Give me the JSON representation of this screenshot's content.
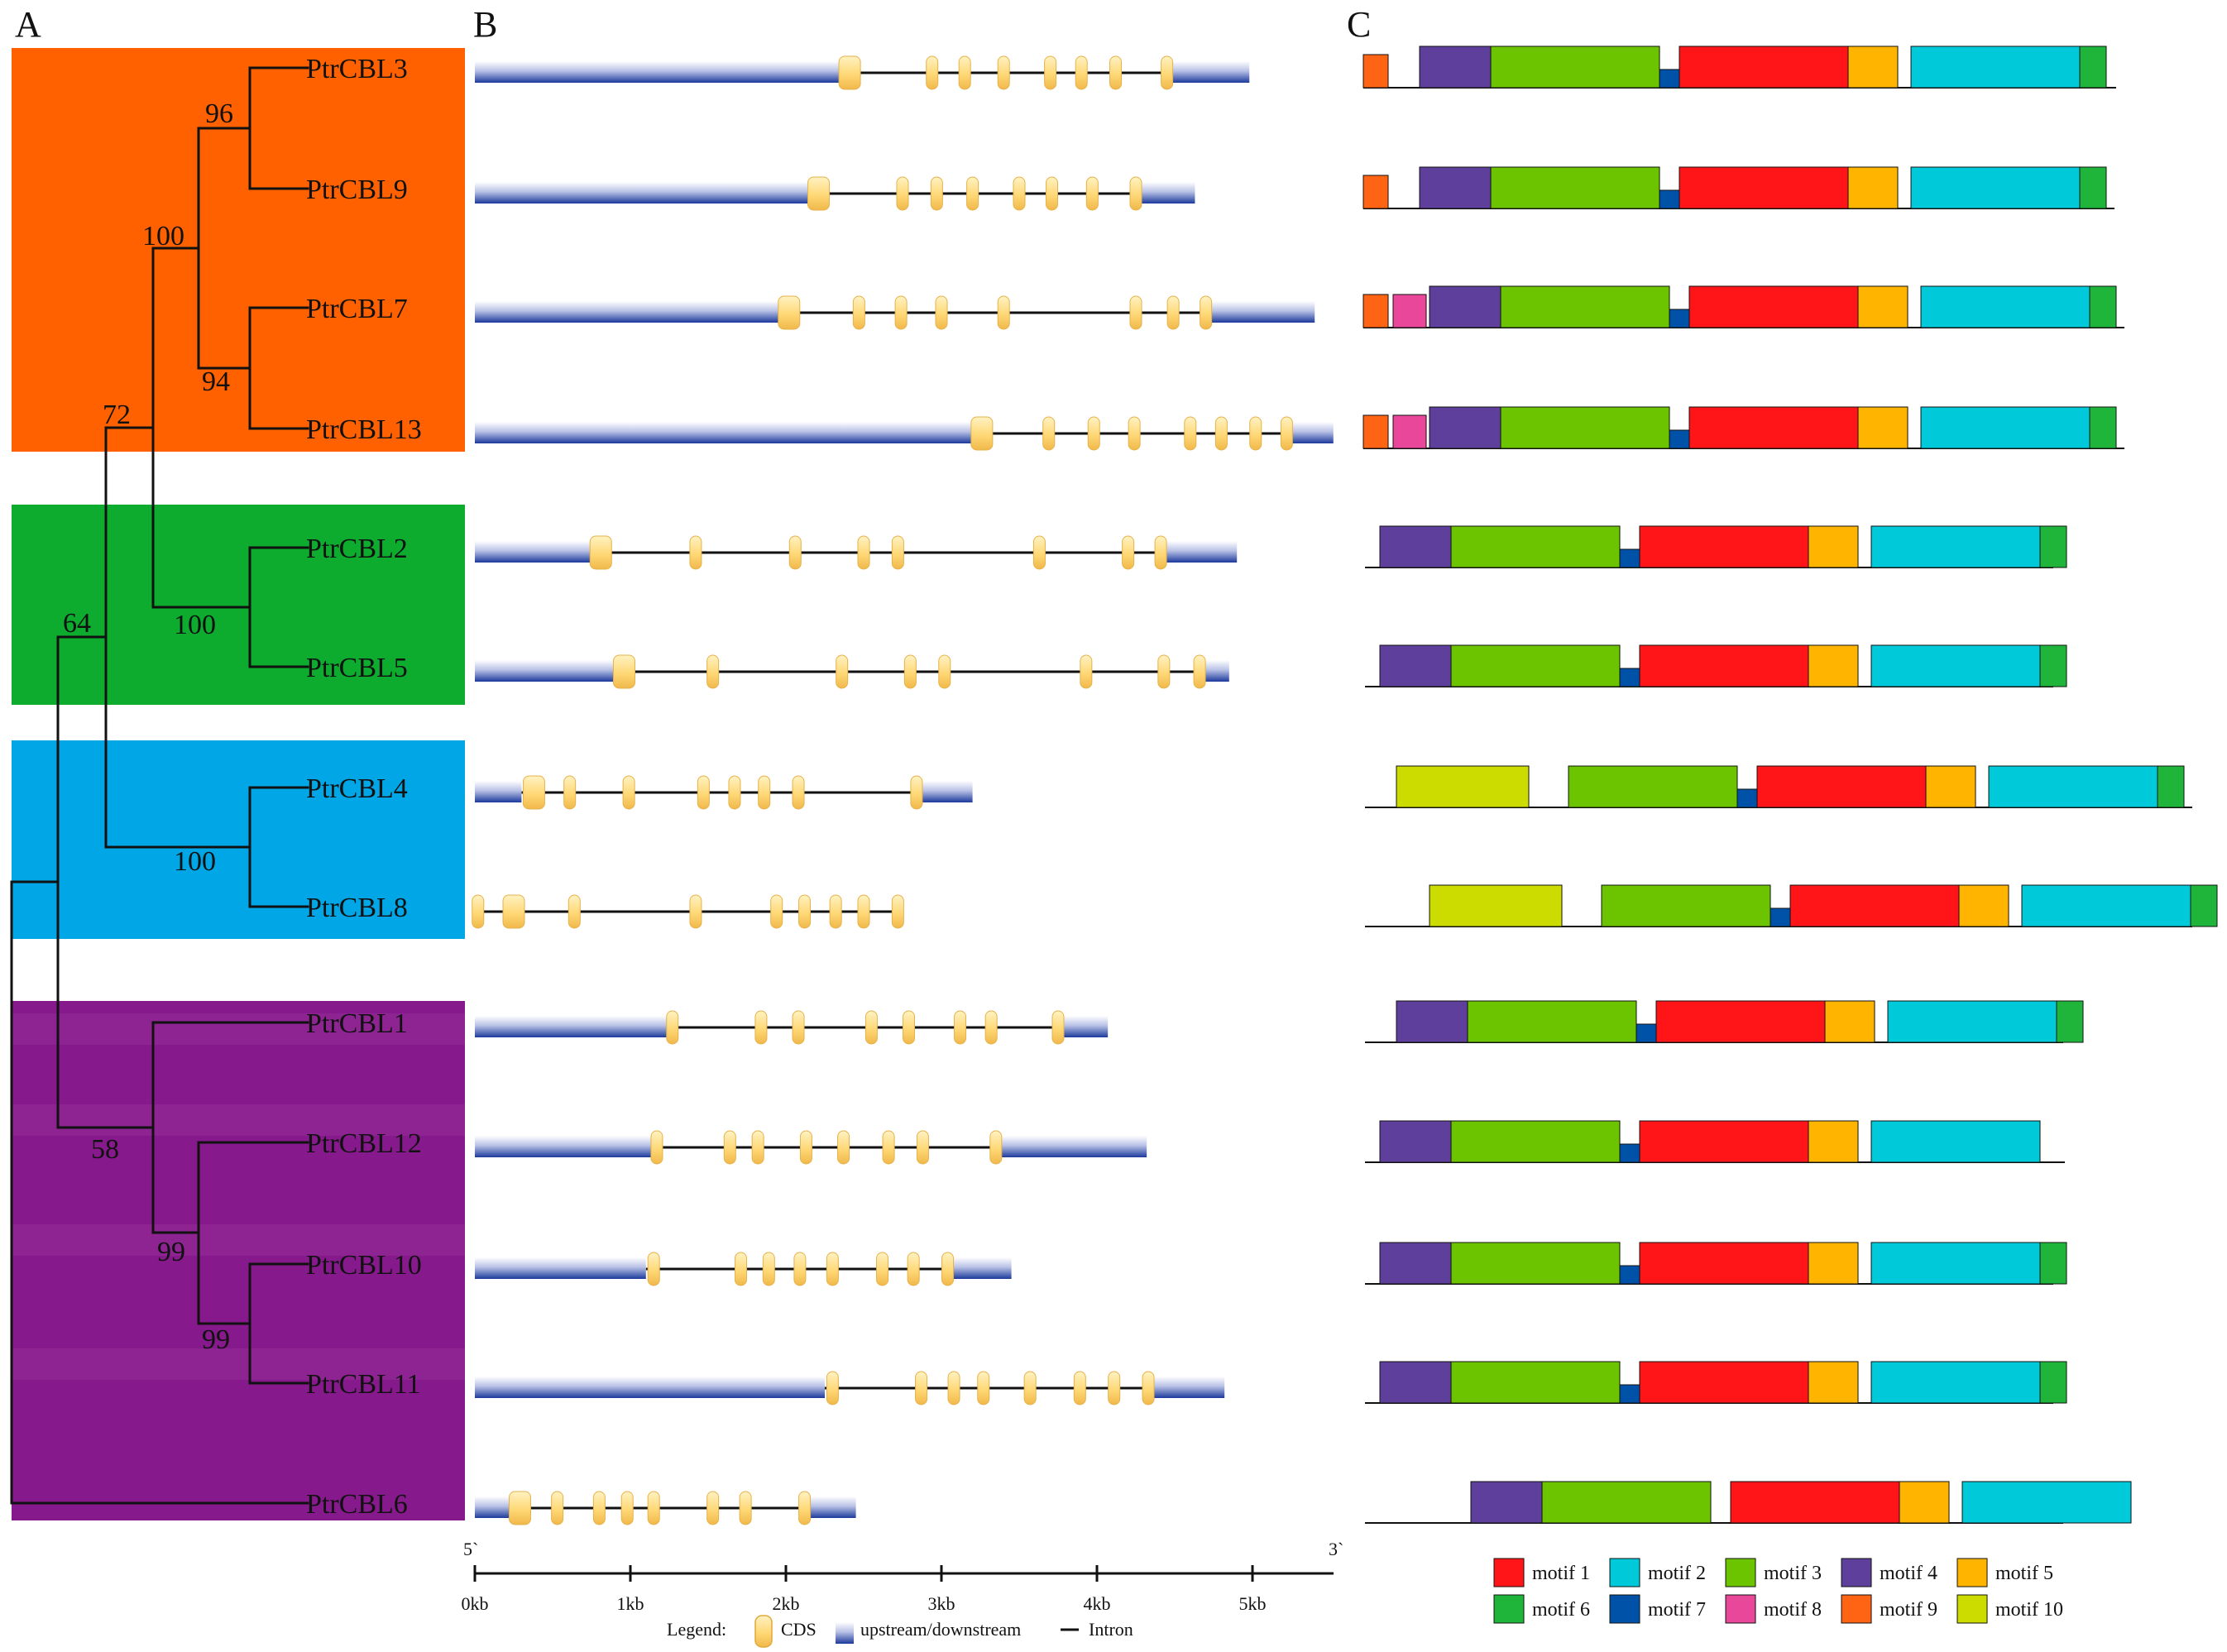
{
  "panels": {
    "a": "A",
    "b": "B",
    "c": "C"
  },
  "clades": [
    {
      "name": "orange-clade",
      "color": "#FF6100"
    },
    {
      "name": "green-clade",
      "color": "#0DAB2E"
    },
    {
      "name": "blue-clade",
      "color": "#00A6E6"
    },
    {
      "name": "purple-clade",
      "color": "#86198C"
    }
  ],
  "genes": [
    "PtrCBL3",
    "PtrCBL9",
    "PtrCBL7",
    "PtrCBL13",
    "PtrCBL2",
    "PtrCBL5",
    "PtrCBL4",
    "PtrCBL8",
    "PtrCBL1",
    "PtrCBL12",
    "PtrCBL10",
    "PtrCBL11",
    "PtrCBL6"
  ],
  "bootstrap": {
    "n96": "96",
    "n100a": "100",
    "n94": "94",
    "n72": "72",
    "n100b": "100",
    "n64": "64",
    "n100c": "100",
    "n58": "58",
    "n99a": "99",
    "n99b": "99"
  },
  "gene_structures": [
    {
      "gene": "PtrCBL3",
      "utr5_kb": 2.4,
      "end_kb": 4.98,
      "utr3_start_kb": 4.48,
      "exons": [
        2.41,
        2.94,
        3.15,
        3.4,
        3.7,
        3.9,
        4.12,
        4.45
      ]
    },
    {
      "gene": "PtrCBL9",
      "utr5_kb": 2.2,
      "end_kb": 4.63,
      "utr3_start_kb": 4.28,
      "exons": [
        2.21,
        2.75,
        2.97,
        3.2,
        3.5,
        3.71,
        3.97,
        4.25
      ]
    },
    {
      "gene": "PtrCBL7",
      "utr5_kb": 2.0,
      "end_kb": 5.4,
      "utr3_start_kb": 4.72,
      "exons": [
        2.02,
        2.47,
        2.74,
        3.0,
        3.4,
        4.25,
        4.49,
        4.7
      ]
    },
    {
      "gene": "PtrCBL13",
      "utr5_kb": 3.25,
      "end_kb": 5.52,
      "utr3_start_kb": 5.25,
      "exons": [
        3.26,
        3.69,
        3.98,
        4.24,
        4.6,
        4.8,
        5.02,
        5.22
      ]
    },
    {
      "gene": "PtrCBL2",
      "utr5_kb": 0.8,
      "end_kb": 4.9,
      "utr3_start_kb": 4.43,
      "exons": [
        0.81,
        1.42,
        2.06,
        2.5,
        2.72,
        3.63,
        4.2,
        4.41
      ]
    },
    {
      "gene": "PtrCBL5",
      "utr5_kb": 0.95,
      "end_kb": 4.85,
      "utr3_start_kb": 4.68,
      "exons": [
        0.96,
        1.53,
        2.36,
        2.8,
        3.02,
        3.93,
        4.43,
        4.66
      ]
    },
    {
      "gene": "PtrCBL4",
      "utr5_kb": 0.3,
      "end_kb": 3.2,
      "utr3_start_kb": 2.86,
      "exons": [
        0.38,
        0.61,
        0.99,
        1.47,
        1.67,
        1.86,
        2.08,
        2.84
      ]
    },
    {
      "gene": "PtrCBL8",
      "utr5_kb": 0.0,
      "end_kb": 2.75,
      "utr3_start_kb": 2.75,
      "exons": [
        0.02,
        0.25,
        0.64,
        1.42,
        1.94,
        2.12,
        2.32,
        2.5,
        2.72
      ]
    },
    {
      "gene": "PtrCBL1",
      "utr5_kb": 1.25,
      "end_kb": 4.07,
      "utr3_start_kb": 3.77,
      "exons": [
        1.27,
        1.84,
        2.08,
        2.55,
        2.79,
        3.12,
        3.32,
        3.75
      ]
    },
    {
      "gene": "PtrCBL12",
      "utr5_kb": 1.15,
      "end_kb": 4.32,
      "utr3_start_kb": 3.37,
      "exons": [
        1.17,
        1.64,
        1.82,
        2.13,
        2.37,
        2.66,
        2.88,
        3.35
      ]
    },
    {
      "gene": "PtrCBL10",
      "utr5_kb": 1.1,
      "end_kb": 3.45,
      "utr3_start_kb": 3.06,
      "exons": [
        1.15,
        1.71,
        1.89,
        2.09,
        2.3,
        2.62,
        2.82,
        3.04
      ]
    },
    {
      "gene": "PtrCBL11",
      "utr5_kb": 2.25,
      "end_kb": 4.82,
      "utr3_start_kb": 4.35,
      "exons": [
        2.3,
        2.87,
        3.08,
        3.27,
        3.57,
        3.89,
        4.11,
        4.33
      ]
    },
    {
      "gene": "PtrCBL6",
      "utr5_kb": 0.25,
      "end_kb": 2.45,
      "utr3_start_kb": 2.12,
      "exons": [
        0.29,
        0.53,
        0.8,
        0.98,
        1.15,
        1.53,
        1.74,
        2.12
      ]
    }
  ],
  "scale_axis": {
    "left_label": "5`",
    "right_label": "3`",
    "ticks": [
      "0kb",
      "1kb",
      "2kb",
      "3kb",
      "4kb",
      "5kb"
    ]
  },
  "legend": {
    "title": "Legend:",
    "cds": "CDS",
    "updown": "upstream/downstream",
    "intron": "Intron"
  },
  "motif_legend": [
    {
      "label": "motif 1",
      "color": "#FF1418"
    },
    {
      "label": "motif 2",
      "color": "#00CAD9"
    },
    {
      "label": "motif 3",
      "color": "#6CC400"
    },
    {
      "label": "motif 4",
      "color": "#5E3F9C"
    },
    {
      "label": "motif 5",
      "color": "#FFB400"
    },
    {
      "label": "motif 6",
      "color": "#1FB53A"
    },
    {
      "label": "motif 7",
      "color": "#0052A8"
    },
    {
      "label": "motif 8",
      "color": "#E8479A"
    },
    {
      "label": "motif 9",
      "color": "#FF6414"
    },
    {
      "label": "motif 10",
      "color": "#CDDC00"
    }
  ],
  "motif_tracks": [
    {
      "gene": "PtrCBL3",
      "motifs": [
        9,
        4,
        3,
        7,
        1,
        5,
        2,
        6
      ]
    },
    {
      "gene": "PtrCBL9",
      "motifs": [
        9,
        4,
        3,
        7,
        1,
        5,
        2,
        6
      ]
    },
    {
      "gene": "PtrCBL7",
      "motifs": [
        9,
        8,
        4,
        3,
        7,
        1,
        5,
        2,
        6
      ]
    },
    {
      "gene": "PtrCBL13",
      "motifs": [
        9,
        8,
        4,
        3,
        7,
        1,
        5,
        2,
        6
      ]
    },
    {
      "gene": "PtrCBL2",
      "motifs": [
        4,
        3,
        7,
        1,
        5,
        2,
        6
      ]
    },
    {
      "gene": "PtrCBL5",
      "motifs": [
        4,
        3,
        7,
        1,
        5,
        2,
        6
      ]
    },
    {
      "gene": "PtrCBL4",
      "motifs": [
        10,
        3,
        7,
        1,
        5,
        2,
        6
      ]
    },
    {
      "gene": "PtrCBL8",
      "motifs": [
        10,
        3,
        7,
        1,
        5,
        2,
        6
      ]
    },
    {
      "gene": "PtrCBL1",
      "motifs": [
        4,
        3,
        7,
        1,
        5,
        2,
        6
      ]
    },
    {
      "gene": "PtrCBL12",
      "motifs": [
        4,
        3,
        7,
        1,
        5,
        2
      ]
    },
    {
      "gene": "PtrCBL10",
      "motifs": [
        4,
        3,
        7,
        1,
        5,
        2,
        6
      ]
    },
    {
      "gene": "PtrCBL11",
      "motifs": [
        4,
        3,
        7,
        1,
        5,
        2,
        6
      ]
    },
    {
      "gene": "PtrCBL6",
      "motifs": [
        4,
        3,
        1,
        5,
        2
      ]
    }
  ]
}
